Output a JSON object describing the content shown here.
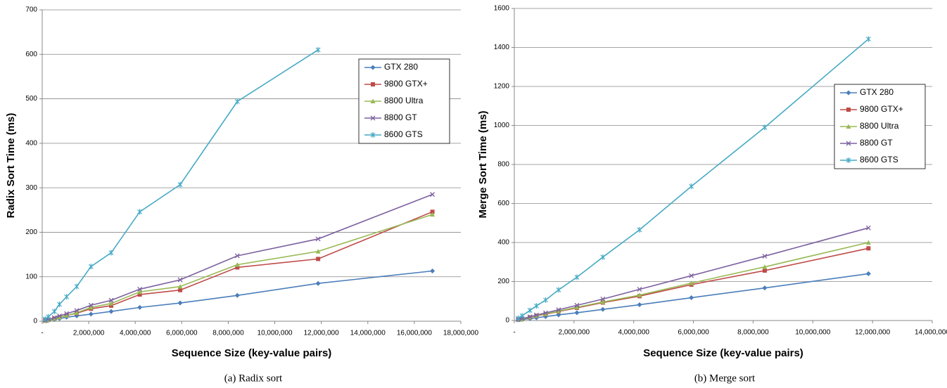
{
  "chart_data": [
    {
      "type": "line",
      "y_label": "Radix Sort Time (ms)",
      "x_label": "Sequence Size (key-value pairs)",
      "caption": "(a) Radix sort",
      "x": [
        131072,
        262144,
        524288,
        741455,
        1048576,
        1482910,
        2097152,
        2965820,
        4194304,
        5931641,
        8388608,
        11863283,
        16777216
      ],
      "xlim": [
        0,
        18000000
      ],
      "xticks": [
        {
          "value": 0,
          "label": "-"
        },
        {
          "value": 2000000,
          "label": "2,000,000"
        },
        {
          "value": 4000000,
          "label": "4,000,000"
        },
        {
          "value": 6000000,
          "label": "6,000,000"
        },
        {
          "value": 8000000,
          "label": "8,000,000"
        },
        {
          "value": 10000000,
          "label": "10,000,000"
        },
        {
          "value": 12000000,
          "label": "12,000,000"
        },
        {
          "value": 14000000,
          "label": "14,000,000"
        },
        {
          "value": 16000000,
          "label": "16,000,000"
        },
        {
          "value": 18000000,
          "label": "18,000,000"
        }
      ],
      "ylim": [
        0,
        700
      ],
      "yticks": [
        0,
        100,
        200,
        300,
        400,
        500,
        600,
        700
      ],
      "grid": true,
      "legend": "upper right",
      "series": [
        {
          "name": "GTX 280",
          "color": "#4a7ebb",
          "marker": "diamond",
          "values": [
            1,
            2,
            4,
            6,
            9,
            12,
            16,
            22,
            31,
            41,
            58,
            85,
            113
          ]
        },
        {
          "name": "9800 GTX+",
          "color": "#be4b48",
          "marker": "square",
          "values": [
            1,
            3,
            6,
            9,
            13,
            18,
            28,
            35,
            60,
            70,
            121,
            140,
            246
          ]
        },
        {
          "name": "8800 Ultra",
          "color": "#98b954",
          "marker": "triangle",
          "values": [
            1,
            3,
            6,
            9,
            13,
            19,
            31,
            40,
            66,
            78,
            127,
            157,
            240
          ]
        },
        {
          "name": "8800 GT",
          "color": "#7d60a0",
          "marker": "x",
          "values": [
            2,
            4,
            8,
            12,
            17,
            24,
            36,
            47,
            72,
            93,
            147,
            185,
            285
          ]
        },
        {
          "name": "8600 GTS",
          "color": "#46aac5",
          "marker": "star",
          "values": [
            5,
            10,
            22,
            38,
            55,
            78,
            123,
            154,
            246,
            307,
            494,
            610,
            null
          ]
        }
      ]
    },
    {
      "type": "line",
      "y_label": "Merge Sort Time (ms)",
      "x_label": "Sequence Size (key-value pairs)",
      "caption": "(b) Merge sort",
      "x": [
        131072,
        262144,
        524288,
        741455,
        1048576,
        1482910,
        2097152,
        2965820,
        4194304,
        5931641,
        8388608,
        11863283
      ],
      "xlim": [
        0,
        14000000
      ],
      "xticks": [
        {
          "value": 0,
          "label": "-"
        },
        {
          "value": 2000000,
          "label": "2,000,000"
        },
        {
          "value": 4000000,
          "label": "4,000,000"
        },
        {
          "value": 6000000,
          "label": "6,000,000"
        },
        {
          "value": 8000000,
          "label": "8,000,000"
        },
        {
          "value": 10000000,
          "label": "10,000,000"
        },
        {
          "value": 12000000,
          "label": "12,000,000"
        },
        {
          "value": 14000000,
          "label": "14,000,000"
        }
      ],
      "ylim": [
        0,
        1600
      ],
      "yticks": [
        0,
        200,
        400,
        600,
        800,
        1000,
        1200,
        1400,
        1600
      ],
      "grid": true,
      "legend": "upper right",
      "series": [
        {
          "name": "GTX 280",
          "color": "#4a7ebb",
          "marker": "diamond",
          "values": [
            3,
            5,
            10,
            14,
            20,
            29,
            40,
            57,
            81,
            117,
            167,
            240
          ]
        },
        {
          "name": "9800 GTX+",
          "color": "#be4b48",
          "marker": "square",
          "values": [
            4,
            8,
            16,
            24,
            32,
            46,
            65,
            92,
            125,
            184,
            256,
            370
          ]
        },
        {
          "name": "8800 Ultra",
          "color": "#98b954",
          "marker": "triangle",
          "values": [
            4,
            8,
            17,
            25,
            34,
            48,
            68,
            95,
            130,
            192,
            275,
            400
          ]
        },
        {
          "name": "8800 GT",
          "color": "#7d60a0",
          "marker": "x",
          "values": [
            5,
            10,
            19,
            28,
            39,
            55,
            78,
            110,
            160,
            230,
            330,
            475
          ]
        },
        {
          "name": "8600 GTS",
          "color": "#46aac5",
          "marker": "star",
          "values": [
            12,
            24,
            52,
            75,
            105,
            157,
            222,
            325,
            465,
            688,
            990,
            1443
          ]
        }
      ]
    }
  ]
}
